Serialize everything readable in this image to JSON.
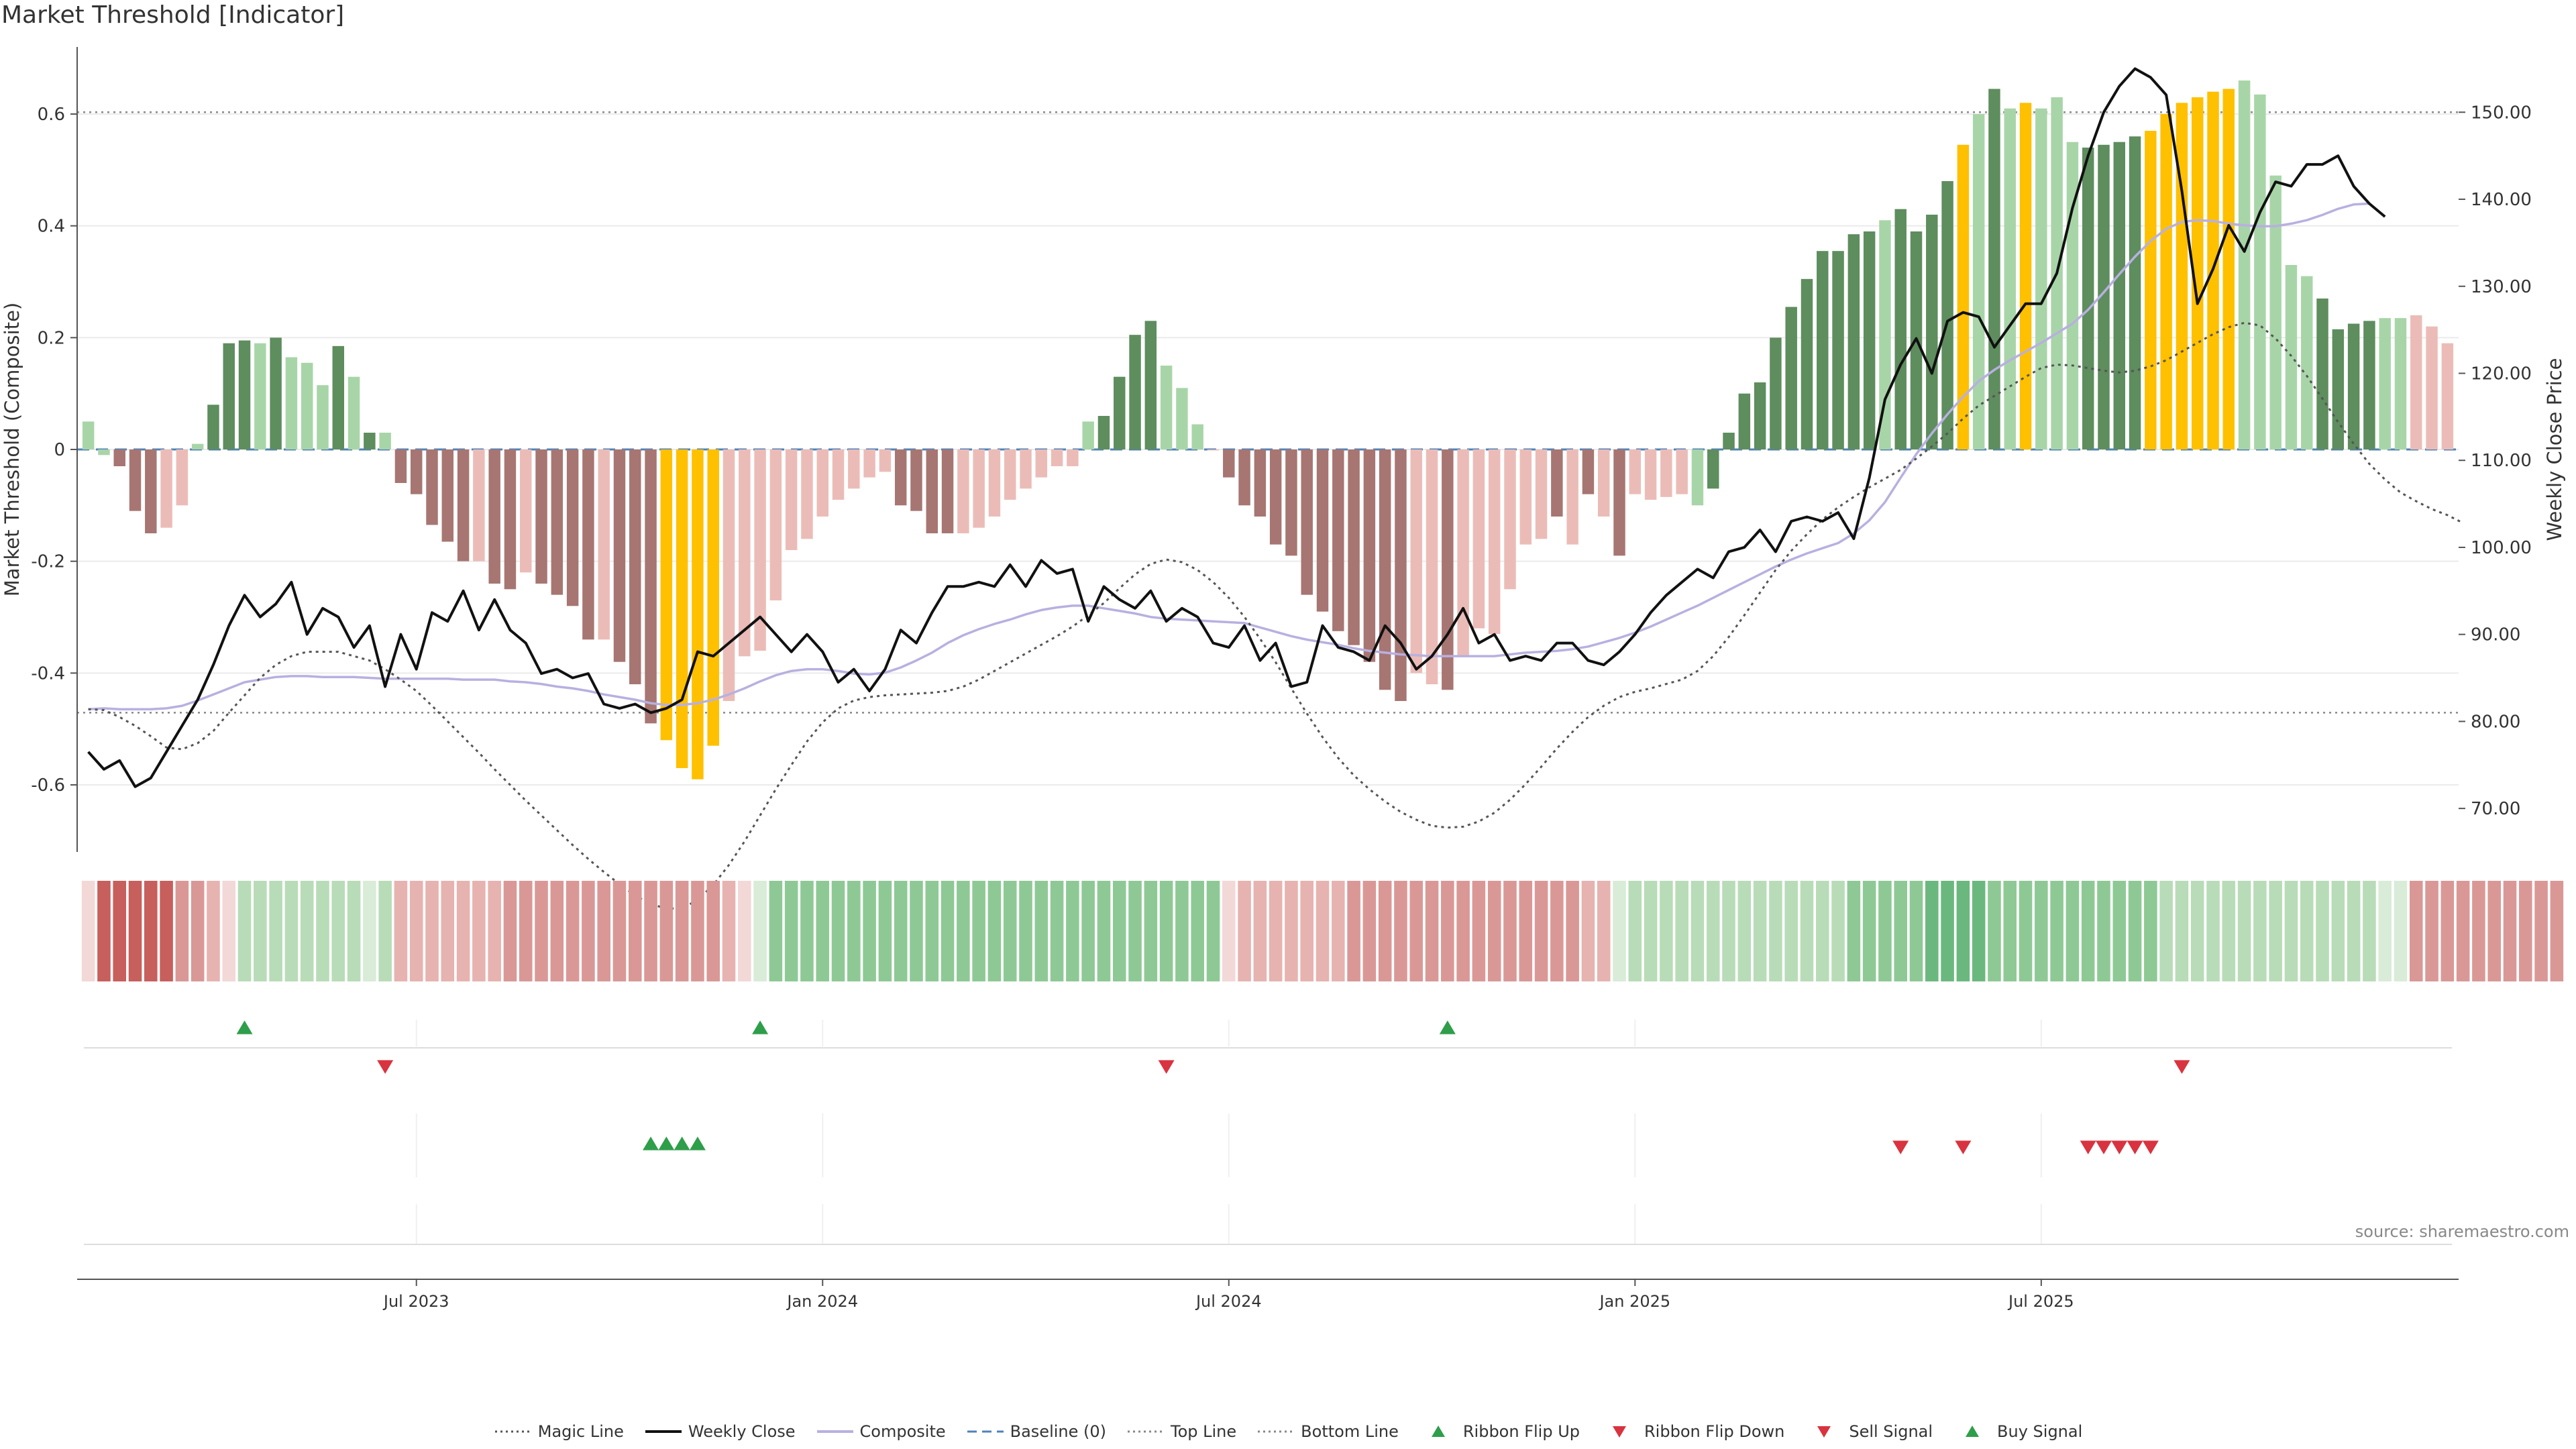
{
  "title": "Market Threshold [Indicator]",
  "source": "source: sharemaestro.com",
  "colors": {
    "dark_green": "#5e8d5e",
    "light_green": "#a8d5a8",
    "dark_red": "#a77672",
    "light_red": "#ebbcb7",
    "gold": "#ffc000",
    "black": "#111111",
    "composite": "#b8b0e0",
    "magic": "#555555",
    "baseline": "#4f82b8",
    "buy": "#2e9e4a",
    "sell": "#d9333f"
  },
  "legend": [
    {
      "label": "Magic Line",
      "kind": "dotted",
      "color": "#555555"
    },
    {
      "label": "Weekly Close",
      "kind": "solid",
      "color": "#111111"
    },
    {
      "label": "Composite",
      "kind": "solid",
      "color": "#b8b0e0"
    },
    {
      "label": "Baseline (0)",
      "kind": "dashed",
      "color": "#4f82b8"
    },
    {
      "label": "Top Line",
      "kind": "dotted-light",
      "color": "#888888"
    },
    {
      "label": "Bottom Line",
      "kind": "dotted-light",
      "color": "#888888"
    },
    {
      "label": "Ribbon Flip Up",
      "kind": "tri-up",
      "color": "#2e9e4a"
    },
    {
      "label": "Ribbon Flip Down",
      "kind": "tri-down",
      "color": "#d9333f"
    },
    {
      "label": "Sell Signal",
      "kind": "tri-down",
      "color": "#d9333f"
    },
    {
      "label": "Buy Signal",
      "kind": "tri-up",
      "color": "#2e9e4a"
    }
  ],
  "chart_data": {
    "type": "bar",
    "ylabel": "Market Threshold (Composite)",
    "y2label": "Weekly Close Price",
    "ylim": [
      -0.72,
      0.72
    ],
    "y2lim": [
      65,
      157.5
    ],
    "yticks": [
      "0.6",
      "0.4",
      "0.2",
      "0",
      "-0.2",
      "-0.4",
      "-0.6"
    ],
    "y2ticks": [
      "150.00",
      "140.00",
      "130.00",
      "120.00",
      "110.00",
      "100.00",
      "90.00",
      "80.00",
      "70.00"
    ],
    "top_line_price": 150,
    "bottom_line_price": 81,
    "xticks": [
      "Jul 2023",
      "Jan 2024",
      "Jul 2024",
      "Jan 2025",
      "Jul 2025"
    ],
    "xtick_weeks": [
      21,
      47,
      73,
      99,
      125
    ],
    "composite": [
      0.05,
      -0.01,
      -0.03,
      -0.11,
      -0.15,
      -0.14,
      -0.1,
      0.01,
      0.08,
      0.19,
      0.195,
      0.19,
      0.2,
      0.165,
      0.155,
      0.115,
      0.185,
      0.13,
      0.03,
      0.03,
      -0.06,
      -0.08,
      -0.135,
      -0.165,
      -0.2,
      -0.2,
      -0.24,
      -0.25,
      -0.22,
      -0.24,
      -0.26,
      -0.28,
      -0.34,
      -0.34,
      -0.38,
      -0.42,
      -0.49,
      -0.52,
      -0.57,
      -0.59,
      -0.53,
      -0.45,
      -0.37,
      -0.36,
      -0.27,
      -0.18,
      -0.16,
      -0.12,
      -0.09,
      -0.07,
      -0.05,
      -0.04,
      -0.1,
      -0.11,
      -0.15,
      -0.15,
      -0.15,
      -0.14,
      -0.12,
      -0.09,
      -0.07,
      -0.05,
      -0.03,
      -0.03,
      0.05,
      0.06,
      0.13,
      0.205,
      0.23,
      0.15,
      0.11,
      0.045,
      0,
      -0.05,
      -0.1,
      -0.12,
      -0.17,
      -0.19,
      -0.26,
      -0.29,
      -0.325,
      -0.35,
      -0.38,
      -0.43,
      -0.45,
      -0.4,
      -0.42,
      -0.43,
      -0.37,
      -0.32,
      -0.33,
      -0.25,
      -0.17,
      -0.16,
      -0.12,
      -0.17,
      -0.08,
      -0.12,
      -0.19,
      -0.08,
      -0.09,
      -0.085,
      -0.08,
      -0.1,
      -0.07,
      0.03,
      0.1,
      0.12,
      0.2,
      0.255,
      0.305,
      0.355,
      0.355,
      0.385,
      0.39,
      0.41,
      0.43,
      0.39,
      0.42,
      0.48,
      0.545,
      0.6,
      0.645,
      0.61,
      0.62,
      0.61,
      0.63,
      0.55,
      0.54,
      0.545,
      0.55,
      0.56,
      0.57,
      0.6,
      0.62,
      0.63,
      0.64,
      0.645,
      0.66,
      0.635,
      0.49,
      0.33,
      0.31,
      0.27,
      0.215,
      0.225,
      0.23,
      0.235,
      0.235,
      0.24,
      0.22,
      0.19
    ],
    "bar_color": [
      "L",
      "L",
      "DR",
      "DR",
      "DR",
      "LR",
      "LR",
      "L",
      "DG",
      "DG",
      "DG",
      "LG",
      "DG",
      "LG",
      "LG",
      "LG",
      "DG",
      "LG",
      "DG",
      "LG",
      "DR",
      "DR",
      "DR",
      "DR",
      "DR",
      "LR",
      "DR",
      "DR",
      "LR",
      "DR",
      "DR",
      "DR",
      "DR",
      "LR",
      "DR",
      "DR",
      "DR",
      "G",
      "G",
      "G",
      "G",
      "LR",
      "LR",
      "LR",
      "LR",
      "LR",
      "LR",
      "LR",
      "LR",
      "LR",
      "LR",
      "LR",
      "DR",
      "DR",
      "DR",
      "DR",
      "LR",
      "LR",
      "LR",
      "LR",
      "LR",
      "LR",
      "LR",
      "LR",
      "LG",
      "DG",
      "DG",
      "DG",
      "DG",
      "LG",
      "LG",
      "LG",
      "LR",
      "DR",
      "DR",
      "DR",
      "DR",
      "DR",
      "DR",
      "DR",
      "DR",
      "DR",
      "DR",
      "DR",
      "DR",
      "LR",
      "LR",
      "DR",
      "LR",
      "LR",
      "LR",
      "LR",
      "LR",
      "LR",
      "DR",
      "LR",
      "DR",
      "LR",
      "DR",
      "LR",
      "LR",
      "LR",
      "LR",
      "LG",
      "DG",
      "DG",
      "DG",
      "DG",
      "DG",
      "DG",
      "DG",
      "DG",
      "DG",
      "DG",
      "DG",
      "LG",
      "DG",
      "DG",
      "DG",
      "DG",
      "G",
      "LG",
      "DG",
      "LG",
      "G",
      "LG",
      "LG",
      "LG",
      "DG",
      "DG",
      "DG",
      "DG",
      "G",
      "G",
      "G",
      "G",
      "G",
      "G",
      "LG",
      "LG",
      "LG",
      "LG",
      "LG",
      "DG",
      "DG",
      "DG",
      "DG",
      "LG",
      "LG"
    ],
    "weekly_close": [
      76.5,
      74.5,
      75.5,
      72.5,
      73.5,
      76.5,
      79.5,
      82.5,
      86.5,
      91,
      94.5,
      92,
      93.5,
      96,
      90,
      93,
      92,
      88.5,
      91,
      84,
      90,
      86,
      92.5,
      91.5,
      95,
      90.5,
      94,
      90.5,
      89,
      85.5,
      86,
      85,
      85.5,
      82,
      81.5,
      82,
      81,
      81.5,
      82.5,
      88,
      87.5,
      89,
      90.5,
      92,
      90,
      88,
      90,
      88,
      84.5,
      86,
      83.5,
      86,
      90.5,
      89,
      92.5,
      95.5,
      95.5,
      96,
      95.5,
      98,
      95.5,
      98.5,
      97,
      97.5,
      91.5,
      95.5,
      94,
      93,
      95,
      91.5,
      93,
      92,
      89,
      88.5,
      91,
      87,
      89,
      84,
      84.5,
      91,
      88.5,
      88,
      87,
      91,
      89,
      86,
      87.5,
      90,
      93,
      89,
      90,
      87,
      87.5,
      87,
      89,
      89,
      87,
      86.5,
      88,
      90,
      92.5,
      94.5,
      96,
      97.5,
      96.5,
      99.5,
      100,
      102,
      99.5,
      103,
      103.5,
      103,
      104,
      101,
      108,
      117,
      121,
      124,
      120,
      126,
      127,
      126.5,
      123,
      125.5,
      128,
      128,
      131.5,
      139,
      145,
      150,
      153,
      155,
      154,
      152,
      141,
      128,
      132,
      137,
      134,
      138.5,
      142,
      141.5,
      144,
      144,
      145,
      141.5,
      139.5,
      138
    ],
    "composite_line": [
      81.4,
      81.5,
      81.4,
      81.4,
      81.4,
      81.5,
      81.8,
      82.4,
      83.1,
      83.8,
      84.5,
      84.8,
      85.1,
      85.2,
      85.2,
      85.1,
      85.1,
      85.1,
      85,
      84.9,
      84.9,
      84.9,
      84.9,
      84.9,
      84.8,
      84.8,
      84.8,
      84.6,
      84.5,
      84.3,
      84,
      83.8,
      83.5,
      83.1,
      82.8,
      82.5,
      82.1,
      81.9,
      81.9,
      82.1,
      82.5,
      83.1,
      83.8,
      84.6,
      85.3,
      85.8,
      86,
      86,
      85.8,
      85.5,
      85.4,
      85.6,
      86.2,
      87,
      87.9,
      89,
      89.9,
      90.6,
      91.2,
      91.7,
      92.3,
      92.8,
      93.1,
      93.3,
      93.3,
      93,
      92.7,
      92.4,
      92,
      91.8,
      91.7,
      91.6,
      91.5,
      91.4,
      91.3,
      90.8,
      90.3,
      89.8,
      89.4,
      89.1,
      88.8,
      88.4,
      88.1,
      87.9,
      87.7,
      87.6,
      87.5,
      87.5,
      87.5,
      87.5,
      87.5,
      87.7,
      87.9,
      88,
      88.1,
      88.3,
      88.6,
      89.1,
      89.6,
      90.2,
      90.9,
      91.7,
      92.5,
      93.3,
      94.2,
      95.1,
      96,
      96.9,
      97.8,
      98.6,
      99.3,
      99.9,
      100.5,
      101.6,
      103.1,
      105.2,
      108,
      110.7,
      113.1,
      115.3,
      117.3,
      119.1,
      120.4,
      121.5,
      122.5,
      123.5,
      124.6,
      125.7,
      127.3,
      129.3,
      131.4,
      133.4,
      135.2,
      136.6,
      137.4,
      137.6,
      137.5,
      137.2,
      137,
      136.9,
      136.9,
      137.2,
      137.6,
      138.2,
      138.9,
      139.4,
      139.5
    ],
    "magic_line": [
      81.4,
      81.3,
      80.5,
      79.5,
      78.3,
      77,
      76.8,
      77.5,
      78.9,
      81,
      83,
      85,
      86.5,
      87.5,
      88,
      88,
      88,
      87.5,
      87,
      86,
      84.8,
      83.5,
      81.8,
      80,
      78.2,
      76.4,
      74.5,
      72.7,
      70.9,
      69.2,
      67.5,
      65.8,
      64.2,
      62.7,
      61.3,
      60,
      59,
      58.5,
      58.5,
      59.5,
      61.2,
      63.5,
      66.2,
      69.2,
      72.2,
      75,
      77.7,
      79.9,
      81.5,
      82.4,
      82.8,
      83,
      83.1,
      83.2,
      83.3,
      83.5,
      84,
      84.8,
      85.8,
      86.8,
      87.8,
      88.8,
      89.8,
      90.9,
      92.2,
      93.6,
      95.3,
      96.9,
      98.1,
      98.6,
      98.3,
      97.4,
      96,
      94.2,
      92,
      89.5,
      86.8,
      83.8,
      80.9,
      78.2,
      75.8,
      73.8,
      72.2,
      70.8,
      69.6,
      68.7,
      68,
      67.8,
      67.9,
      68.5,
      69.5,
      71,
      72.8,
      74.8,
      76.9,
      78.8,
      80.5,
      81.8,
      82.8,
      83.4,
      83.8,
      84.3,
      84.8,
      85.8,
      87.5,
      89.7,
      92.2,
      94.8,
      97.4,
      99.6,
      101.5,
      103.2,
      104.6,
      105.8,
      106.9,
      107.9,
      108.9,
      110.2,
      111.6,
      113.1,
      114.8,
      116.3,
      117.4,
      118.5,
      119.6,
      120.6,
      121,
      120.9,
      120.6,
      120.3,
      120.1,
      120.3,
      120.8,
      121.5,
      122.5,
      123.5,
      124.5,
      125.3,
      125.8,
      125.5,
      124,
      122,
      119.7,
      117.1,
      114.4,
      111.9,
      109.6,
      107.8,
      106.3,
      105.3,
      104.4,
      103.7,
      102.8
    ],
    "ribbon_shade": [
      1,
      4,
      4,
      4,
      4,
      4,
      3,
      3,
      2,
      1,
      -2,
      -2,
      -2,
      -2,
      -2,
      -2,
      -2,
      -2,
      -1,
      -2,
      2,
      2,
      2,
      2,
      2,
      2,
      2,
      3,
      3,
      3,
      3,
      3,
      3,
      3,
      3,
      3,
      3,
      3,
      3,
      3,
      3,
      2,
      1,
      -1,
      -3,
      -3,
      -3,
      -3,
      -3,
      -3,
      -3,
      -3,
      -3,
      -3,
      -3,
      -3,
      -3,
      -3,
      -3,
      -3,
      -3,
      -3,
      -3,
      -3,
      -3,
      -3,
      -3,
      -3,
      -3,
      -3,
      -3,
      -3,
      -3,
      1,
      2,
      2,
      2,
      2,
      2,
      2,
      2,
      3,
      3,
      3,
      3,
      3,
      3,
      3,
      3,
      3,
      3,
      3,
      3,
      3,
      3,
      3,
      2,
      2,
      -1,
      -2,
      -2,
      -2,
      -2,
      -2,
      -2,
      -2,
      -2,
      -2,
      -2,
      -2,
      -2,
      -2,
      -2,
      -3,
      -3,
      -3,
      -3,
      -3,
      -4,
      -4,
      -4,
      -4,
      -3,
      -3,
      -3,
      -3,
      -3,
      -3,
      -3,
      -3,
      -3,
      -3,
      -3,
      -2,
      -2,
      -2,
      -2,
      -2,
      -2,
      -2,
      -2,
      -2,
      -2,
      -2,
      -2,
      -2,
      -2,
      -1,
      -1,
      3,
      3,
      3,
      3,
      3,
      3,
      3,
      3,
      3,
      3
    ],
    "ribbon_flip_up_weeks": [
      10,
      43,
      87
    ],
    "ribbon_flip_down_weeks": [
      19,
      69,
      134
    ],
    "buy_signal_weeks": [
      36,
      37,
      38,
      39
    ],
    "sell_signal_weeks": [
      116,
      120,
      128,
      129,
      130,
      131,
      132
    ]
  }
}
